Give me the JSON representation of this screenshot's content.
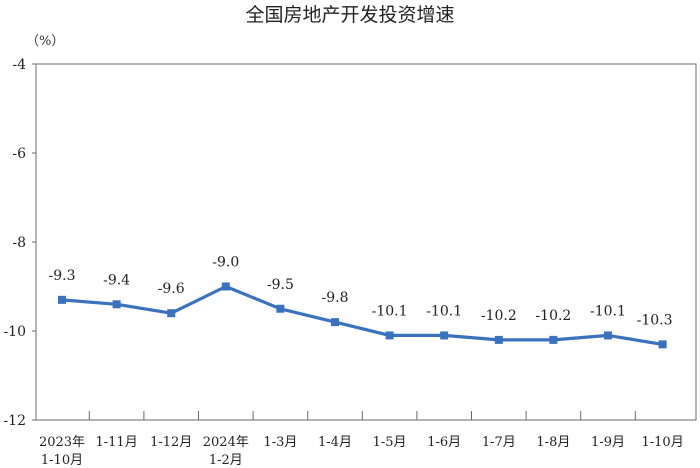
{
  "chart_data": {
    "type": "line",
    "title": "全国房地产开发投资增速",
    "unit_label": "（%）",
    "ylim": [
      -12,
      -4
    ],
    "yticks": [
      "-4",
      "-6",
      "-8",
      "-10",
      "-12"
    ],
    "ytick_values": [
      -4,
      -6,
      -8,
      -10,
      -12
    ],
    "categories": [
      [
        "2023年",
        "1-10月"
      ],
      [
        "1-11月"
      ],
      [
        "1-12月"
      ],
      [
        "2024年",
        "1-2月"
      ],
      [
        "1-3月"
      ],
      [
        "1-4月"
      ],
      [
        "1-5月"
      ],
      [
        "1-6月"
      ],
      [
        "1-7月"
      ],
      [
        "1-8月"
      ],
      [
        "1-9月"
      ],
      [
        "1-10月"
      ]
    ],
    "series": [
      {
        "values": [
          -9.3,
          -9.4,
          -9.6,
          -9.0,
          -9.5,
          -9.8,
          -10.1,
          -10.1,
          -10.2,
          -10.2,
          -10.1,
          -10.3
        ],
        "labels": [
          "-9.3",
          "-9.4",
          "-9.6",
          "-9.0",
          "-9.5",
          "-9.8",
          "-10.1",
          "-10.1",
          "-10.2",
          "-10.2",
          "-10.1",
          "-10.3"
        ],
        "color": "#3a72c0"
      }
    ],
    "grid": false
  }
}
